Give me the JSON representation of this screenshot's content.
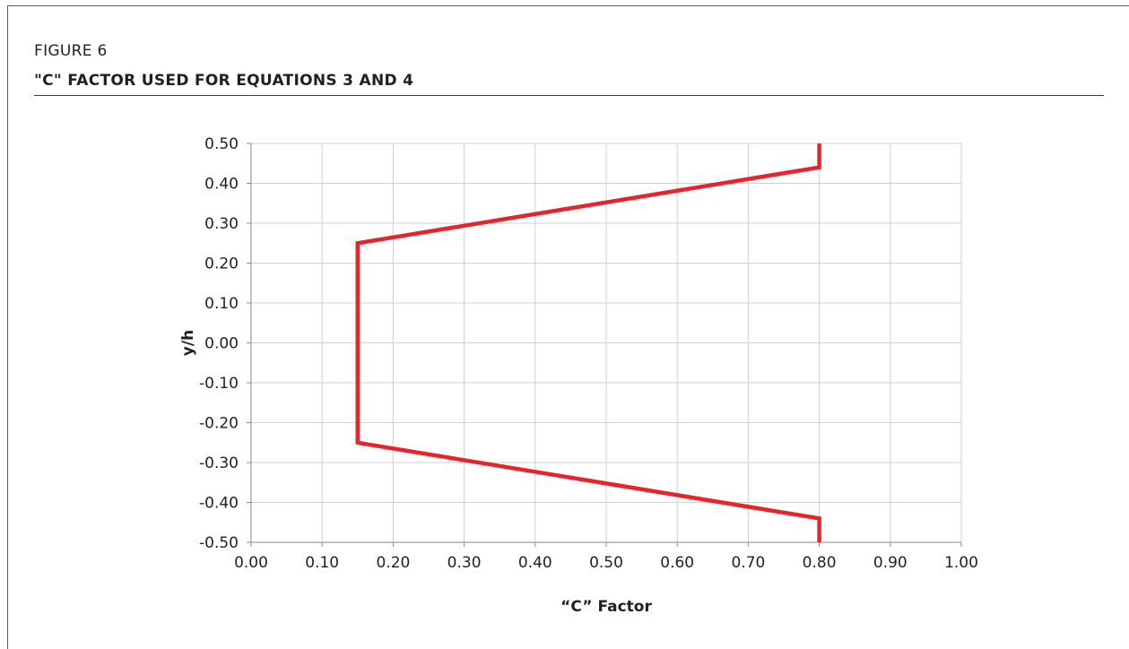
{
  "figure_label": "FIGURE 6",
  "figure_title": "\"C\" FACTOR USED FOR EQUATIONS 3 AND 4",
  "chart_data": {
    "type": "line",
    "xlabel": "“C” Factor",
    "ylabel": "y/h",
    "xlim": [
      0.0,
      1.0
    ],
    "ylim": [
      -0.5,
      0.5
    ],
    "x_ticks": [
      "0.00",
      "0.10",
      "0.20",
      "0.30",
      "0.40",
      "0.50",
      "0.60",
      "0.70",
      "0.80",
      "0.90",
      "1.00"
    ],
    "y_ticks": [
      "0.50",
      "0.40",
      "0.30",
      "0.20",
      "0.10",
      "0.00",
      "-0.10",
      "-0.20",
      "-0.30",
      "-0.40",
      "-0.50"
    ],
    "grid": true,
    "series": [
      {
        "color": "#e8232a",
        "points": [
          {
            "x": 0.8,
            "y": 0.5
          },
          {
            "x": 0.8,
            "y": 0.44
          },
          {
            "x": 0.15,
            "y": 0.25
          },
          {
            "x": 0.15,
            "y": -0.25
          },
          {
            "x": 0.8,
            "y": -0.44
          },
          {
            "x": 0.8,
            "y": -0.5
          }
        ]
      }
    ]
  }
}
